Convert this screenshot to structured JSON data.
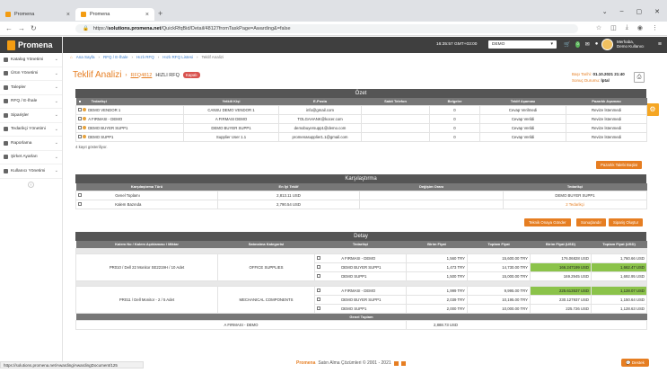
{
  "browser": {
    "tabs": [
      {
        "label": "Promena"
      },
      {
        "label": "Promena"
      }
    ],
    "url_prefix": "https://",
    "url_domain": "solutions.promena.net",
    "url_rest": "/QuickRfqBid/Detail/48127fromTaskPage=Awarding&=false",
    "status_url": "https://solutions.promena.net/Awarding/AwardingDocument/125"
  },
  "sidebar": {
    "logo": "Promena",
    "items": [
      {
        "label": "Katalog Yönetimi"
      },
      {
        "label": "Ürün Yönetimi"
      },
      {
        "label": "Talepler"
      },
      {
        "label": "RFQ / E-İhale"
      },
      {
        "label": "Siparişler"
      },
      {
        "label": "Tedarikçi Yönetimi"
      },
      {
        "label": "Raporlama"
      },
      {
        "label": "Şirket Ayarları"
      },
      {
        "label": "Kullanıcı Yönetimi"
      }
    ]
  },
  "topbar": {
    "clock": "16:35:57 GMT+03:00",
    "company": "DEMO",
    "greeting": "Merhaba,",
    "user": "Demo Kullanıcı",
    "cart_badge": "0"
  },
  "breadcrumb": [
    "Ana Sayfa",
    "RFQ / E-İhale",
    "Hızlı RFQ",
    "Hızlı RFQ Listesi",
    "Teklif Analizi"
  ],
  "page": {
    "title": "Teklif Analizi",
    "rfq": "RFQ4812",
    "type": "HIZLI RFQ",
    "status": "Kapalı",
    "start_label": "Başı Tarihi:",
    "start_value": "01.10.2021 21:40",
    "duration_label": "Sonuç Durumu:",
    "duration_value": "İptal"
  },
  "ozet": {
    "title": "Özet",
    "headers": [
      "Tedarikçi",
      "Yetkili Kişi",
      "E-Posta",
      "Sabit Telefon",
      "Belgeler",
      "Teklif Aşaması",
      "Pazarlık Aşaması"
    ],
    "rows": [
      [
        "DEMO VENDOR 1",
        "CANSU DEMO VENDOR 1",
        "info@gmail.com",
        "",
        "0",
        "Cevap Verilmedi",
        "Revize İstenmedi"
      ],
      [
        "A FIRMASI - DEMO",
        "A FIRMASI DEMO",
        "TOLGAHANK@kocer.com",
        "",
        "0",
        "Cevap Verildi",
        "Revize İstenmedi"
      ],
      [
        "DEMO BUYER SUPP1",
        "DEMO BUYER SUPP1",
        "demobuyersupp1@demo.com",
        "",
        "0",
        "Cevap Verildi",
        "Revize İstenmedi"
      ],
      [
        "DEMO SUPP1",
        "Supplier User 1.1",
        "promenasupplier1.1@gmail.com",
        "",
        "0",
        "Cevap Verildi",
        "Revize İstenmedi"
      ]
    ],
    "note": "4 kayıt gösteriliyor.",
    "button": "Pazarlık Talebi Başlat"
  },
  "karsilastirma": {
    "title": "Karşılaştırma",
    "headers": [
      "Karşılaştırma Türü",
      "En İyi Teklif",
      "Değişim Oranı",
      "Tedarikçi"
    ],
    "rows": [
      [
        "Genel Toplamı",
        "2,813.11 USD",
        "",
        "DEMO BUYER SUPP1"
      ],
      [
        "Kalem Bazında",
        "2,790.54 USD",
        "",
        "2 Tedarikçi"
      ]
    ],
    "buttons": [
      "Teknik Onaya Gönder",
      "Sonuçlandır",
      "Sipariş Oluştur"
    ]
  },
  "detay": {
    "title": "Detay",
    "sort": "Sırala",
    "headers": [
      "Kalem No / Kalem Açıklaması / Miktar",
      "Satınalma Kategorisi",
      "Tedarikçi",
      "Birim Fiyat",
      "Toplam Fiyat",
      "Birim Fiyat (USD)",
      "Toplam Fiyat (USD)"
    ],
    "groups": [
      {
        "item": "PR010 / Dell 22 Monitor SE2219H / 10 Adet",
        "category": "OFFICE SUPPLIES",
        "rows": [
          [
            "A FIRMASI - DEMO",
            "1,560 TRY",
            "15,600.00 TRY",
            "176.06828 USD",
            "1,760.66 USD"
          ],
          [
            "DEMO BUYER SUPP1",
            "1,473 TRY",
            "14,730.00 TRY",
            "166.247199 USD",
            "1,662.47 USD"
          ],
          [
            "DEMO SUPP1",
            "1,500 TRY",
            "15,000.00 TRY",
            "169.2945 USD",
            "1,692.95 USD"
          ]
        ]
      },
      {
        "item": "PR011 / Dell Monitor - 2 / 5 Adet",
        "category": "MECHANICAL COMPONENTS",
        "rows": [
          [
            "A FIRMASI - DEMO",
            "1,999 TRY",
            "9,995.00 TRY",
            "225.613537 USD",
            "1,128.07 USD"
          ],
          [
            "DEMO BUYER SUPP1",
            "2,039 TRY",
            "10,195.00 TRY",
            "230.127937 USD",
            "1,150.64 USD"
          ],
          [
            "DEMO SUPP1",
            "2,000 TRY",
            "10,000.00 TRY",
            "225.726 USD",
            "1,128.63 USD"
          ]
        ]
      }
    ],
    "total_title": "Genel Toplam",
    "totals": [
      [
        "A FIRMASI - DEMO",
        "2,888.73 USD"
      ]
    ]
  },
  "footer": {
    "brand": "Promena",
    "text": "Satın Alma Çözümleri © 2001 - 2021",
    "support": "Destek"
  }
}
